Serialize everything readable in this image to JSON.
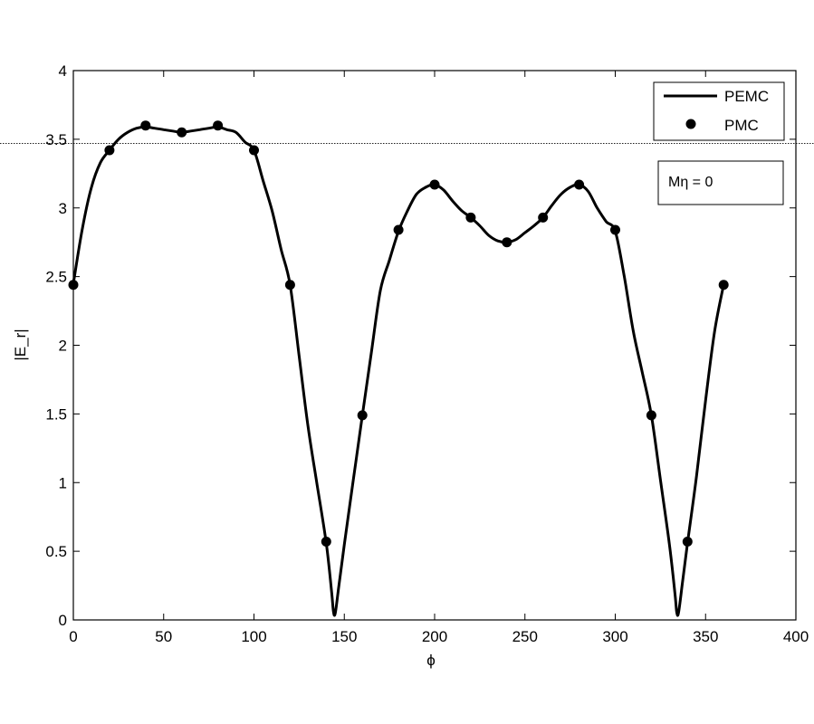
{
  "chart_data": {
    "type": "line",
    "title": "",
    "xlabel": "ϕ",
    "ylabel": "|E_r|",
    "xlim": [
      0,
      400
    ],
    "ylim": [
      0,
      4
    ],
    "xticks": [
      0,
      50,
      100,
      150,
      200,
      250,
      300,
      350,
      400
    ],
    "yticks": [
      0,
      0.5,
      1,
      1.5,
      2,
      2.5,
      3,
      3.5,
      4
    ],
    "xtick_labels": [
      "0",
      "50",
      "100",
      "150",
      "200",
      "250",
      "300",
      "350",
      "400"
    ],
    "ytick_labels": [
      "0",
      "0.5",
      "1",
      "1.5",
      "2",
      "2.5",
      "3",
      "3.5",
      "4"
    ],
    "grid": false,
    "legend_position": "top-right",
    "reference_line_y": 3.47,
    "annotation": "Mη = 0",
    "series": [
      {
        "name": "PEMC",
        "style": "line",
        "color": "#000000",
        "x": [
          0,
          5,
          10,
          15,
          20,
          25,
          30,
          35,
          40,
          45,
          50,
          55,
          60,
          65,
          70,
          75,
          80,
          85,
          90,
          95,
          100,
          105,
          110,
          115,
          120,
          125,
          130,
          135,
          140,
          143,
          144,
          145,
          147,
          150,
          155,
          160,
          165,
          170,
          175,
          180,
          185,
          190,
          195,
          200,
          205,
          210,
          215,
          220,
          225,
          230,
          235,
          240,
          245,
          250,
          255,
          260,
          265,
          270,
          275,
          280,
          285,
          290,
          295,
          300,
          305,
          310,
          315,
          320,
          325,
          330,
          333,
          334,
          335,
          337,
          340,
          345,
          350,
          355,
          360
        ],
        "y": [
          2.45,
          2.85,
          3.15,
          3.33,
          3.42,
          3.5,
          3.55,
          3.58,
          3.59,
          3.58,
          3.57,
          3.56,
          3.55,
          3.56,
          3.57,
          3.58,
          3.59,
          3.57,
          3.55,
          3.48,
          3.42,
          3.2,
          2.98,
          2.7,
          2.44,
          1.92,
          1.4,
          0.98,
          0.56,
          0.2,
          0.06,
          0.05,
          0.25,
          0.55,
          1.02,
          1.49,
          1.95,
          2.4,
          2.62,
          2.83,
          2.98,
          3.1,
          3.15,
          3.17,
          3.13,
          3.05,
          2.98,
          2.93,
          2.87,
          2.8,
          2.76,
          2.75,
          2.77,
          2.82,
          2.87,
          2.93,
          3.02,
          3.1,
          3.15,
          3.17,
          3.12,
          3.0,
          2.9,
          2.83,
          2.5,
          2.1,
          1.8,
          1.49,
          1.02,
          0.55,
          0.2,
          0.06,
          0.05,
          0.25,
          0.56,
          1.05,
          1.6,
          2.1,
          2.44
        ]
      },
      {
        "name": "PMC",
        "style": "markers",
        "color": "#000000",
        "x": [
          0,
          20,
          40,
          60,
          80,
          100,
          120,
          140,
          160,
          180,
          200,
          220,
          240,
          260,
          280,
          300,
          320,
          340,
          360
        ],
        "y": [
          2.44,
          3.42,
          3.6,
          3.55,
          3.6,
          3.42,
          2.44,
          0.57,
          1.49,
          2.84,
          3.17,
          2.93,
          2.75,
          2.93,
          3.17,
          2.84,
          1.49,
          0.57,
          2.44
        ]
      }
    ]
  }
}
